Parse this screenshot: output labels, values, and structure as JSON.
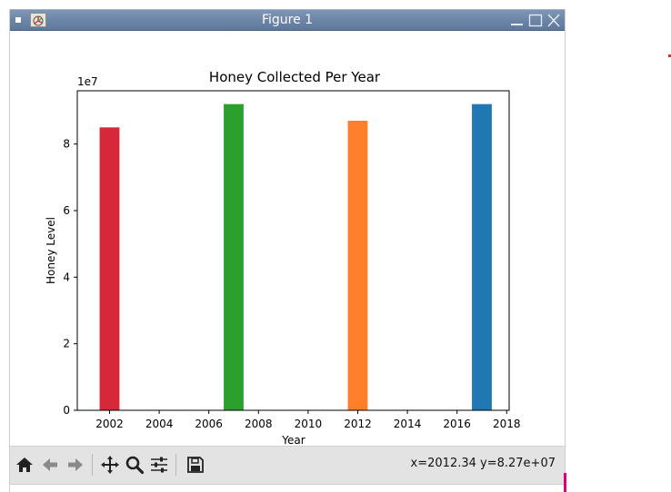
{
  "window": {
    "title": "Figure 1",
    "app_icon": "matplotlib-figure-icon",
    "controls": [
      "minimize-icon",
      "maximize-icon",
      "close-icon"
    ]
  },
  "toolbar": {
    "buttons": [
      "home-icon",
      "back-arrow-icon",
      "forward-arrow-icon",
      "pan-move-icon",
      "zoom-magnifier-icon",
      "configure-subplots-icon",
      "save-floppy-icon"
    ],
    "coords": "x=2012.34 y=8.27e+07"
  },
  "chart_data": {
    "type": "bar",
    "title": "Honey Collected Per Year",
    "xlabel": "Year",
    "ylabel": "Honey Level",
    "y_offset_label": "1e7",
    "x": [
      2002,
      2007,
      2012,
      2017
    ],
    "values": [
      85000000,
      92000000,
      87000000,
      92000000
    ],
    "bar_colors": [
      "#d62838",
      "#2ca02c",
      "#ff7f2a",
      "#1f77b4"
    ],
    "xlim": [
      2000.7,
      2018.1
    ],
    "ylim": [
      0,
      96000000
    ],
    "xticks": [
      "2002",
      "2004",
      "2006",
      "2008",
      "2010",
      "2012",
      "2014",
      "2016",
      "2018"
    ],
    "yticks": [
      "0",
      "2",
      "4",
      "6",
      "8"
    ],
    "grid": false
  }
}
